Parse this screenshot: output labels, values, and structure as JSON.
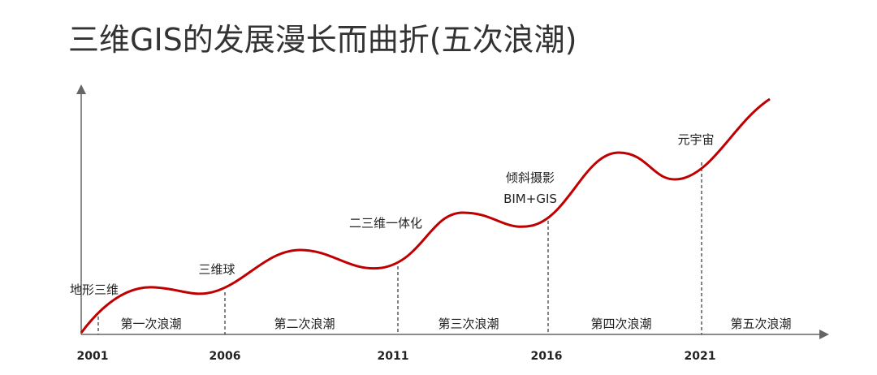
{
  "title": "三维GIS的发展漫长而曲折(五次浪潮)",
  "years": [
    "2001",
    "2006",
    "2011",
    "2016",
    "2021"
  ],
  "waves": [
    "第一次浪潮",
    "第二次浪潮",
    "第三次浪潮",
    "第四次浪潮",
    "第五次浪潮"
  ],
  "milestones": [
    {
      "lines": [
        "地形三维"
      ]
    },
    {
      "lines": [
        "三维球"
      ]
    },
    {
      "lines": [
        "二三维一体化"
      ]
    },
    {
      "lines": [
        "倾斜摄影",
        "BIM+GIS"
      ]
    },
    {
      "lines": [
        "元宇宙"
      ]
    }
  ]
}
